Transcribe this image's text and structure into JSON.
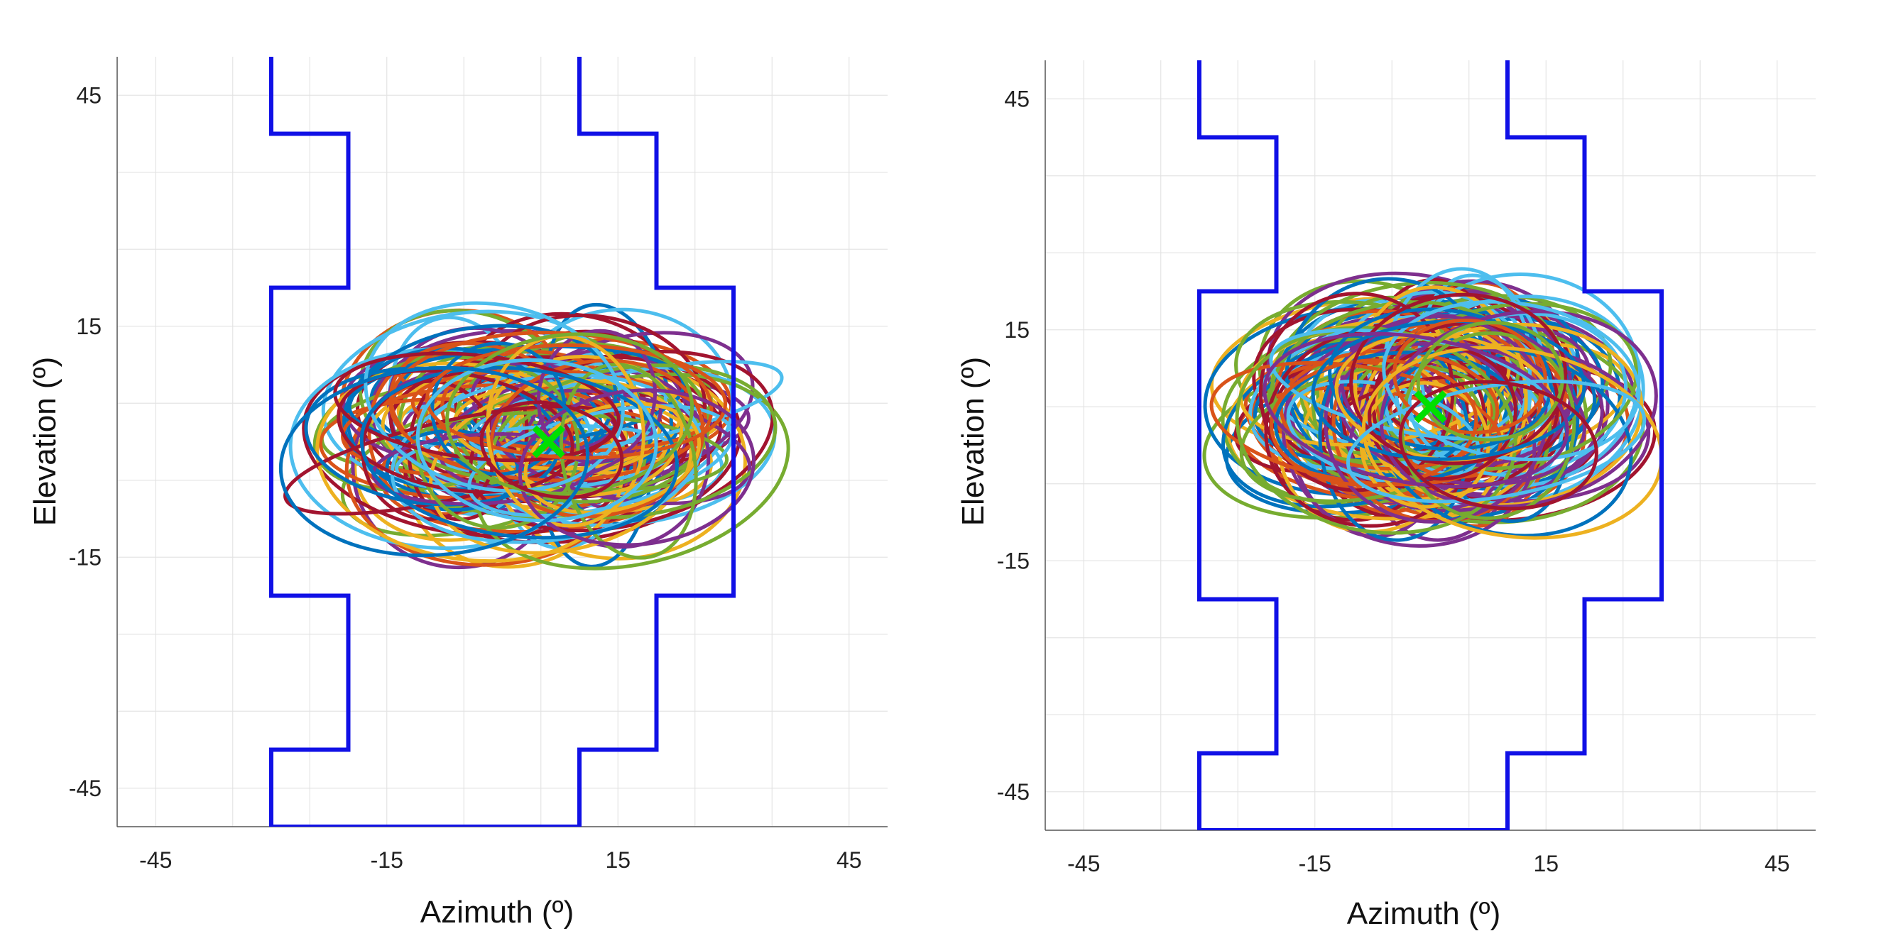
{
  "chart_data": [
    {
      "type": "line",
      "xlabel": "Azimuth (º)",
      "ylabel": "Elevation (º)",
      "xlim": [
        -50,
        50
      ],
      "ylim": [
        -50,
        50
      ],
      "x_ticks": [
        -45,
        -15,
        15,
        45
      ],
      "y_ticks": [
        45,
        15,
        -15,
        -45
      ],
      "grid": true,
      "boundary": {
        "color": "#1010e6",
        "points": [
          [
            -30,
            50
          ],
          [
            -30,
            40
          ],
          [
            -20,
            40
          ],
          [
            -20,
            20
          ],
          [
            -30,
            20
          ],
          [
            -30,
            -20
          ],
          [
            -20,
            -20
          ],
          [
            -20,
            -40
          ],
          [
            -30,
            -40
          ],
          [
            -30,
            -50
          ],
          [
            10,
            -50
          ],
          [
            10,
            -40
          ],
          [
            20,
            -40
          ],
          [
            20,
            -20
          ],
          [
            30,
            -20
          ],
          [
            30,
            20
          ],
          [
            20,
            20
          ],
          [
            20,
            40
          ],
          [
            10,
            40
          ],
          [
            10,
            50
          ]
        ]
      },
      "marker": {
        "shape": "x",
        "color": "#00e000",
        "x": 6,
        "y": 0
      },
      "ellipses": {
        "colors": [
          "#0072bd",
          "#d95319",
          "#edb120",
          "#7e2f8e",
          "#77ac30",
          "#4dbeee",
          "#a2142f"
        ],
        "count": 120,
        "center_x_range": [
          -10,
          18
        ],
        "center_y_range": [
          -4,
          6
        ],
        "rx_range": [
          7,
          22
        ],
        "ry_range": [
          4,
          13
        ]
      }
    },
    {
      "type": "line",
      "xlabel": "Azimuth (º)",
      "ylabel": "Elevation (º)",
      "xlim": [
        -50,
        50
      ],
      "ylim": [
        -50,
        50
      ],
      "x_ticks": [
        -45,
        -15,
        15,
        45
      ],
      "y_ticks": [
        45,
        15,
        -15,
        -45
      ],
      "grid": true,
      "boundary": {
        "color": "#1010e6",
        "points": [
          [
            -30,
            50
          ],
          [
            -30,
            40
          ],
          [
            -20,
            40
          ],
          [
            -20,
            20
          ],
          [
            -30,
            20
          ],
          [
            -30,
            -20
          ],
          [
            -20,
            -20
          ],
          [
            -20,
            -40
          ],
          [
            -30,
            -40
          ],
          [
            -30,
            -50
          ],
          [
            10,
            -50
          ],
          [
            10,
            -40
          ],
          [
            20,
            -40
          ],
          [
            20,
            -20
          ],
          [
            30,
            -20
          ],
          [
            30,
            20
          ],
          [
            20,
            20
          ],
          [
            20,
            40
          ],
          [
            10,
            40
          ],
          [
            10,
            50
          ]
        ]
      },
      "marker": {
        "shape": "x",
        "color": "#00e000",
        "x": 0,
        "y": 5
      },
      "ellipses": {
        "colors": [
          "#0072bd",
          "#d95319",
          "#edb120",
          "#7e2f8e",
          "#77ac30",
          "#4dbeee",
          "#a2142f"
        ],
        "count": 140,
        "center_x_range": [
          -10,
          12
        ],
        "center_y_range": [
          0,
          10
        ],
        "rx_range": [
          8,
          20
        ],
        "ry_range": [
          6,
          14
        ]
      }
    }
  ]
}
